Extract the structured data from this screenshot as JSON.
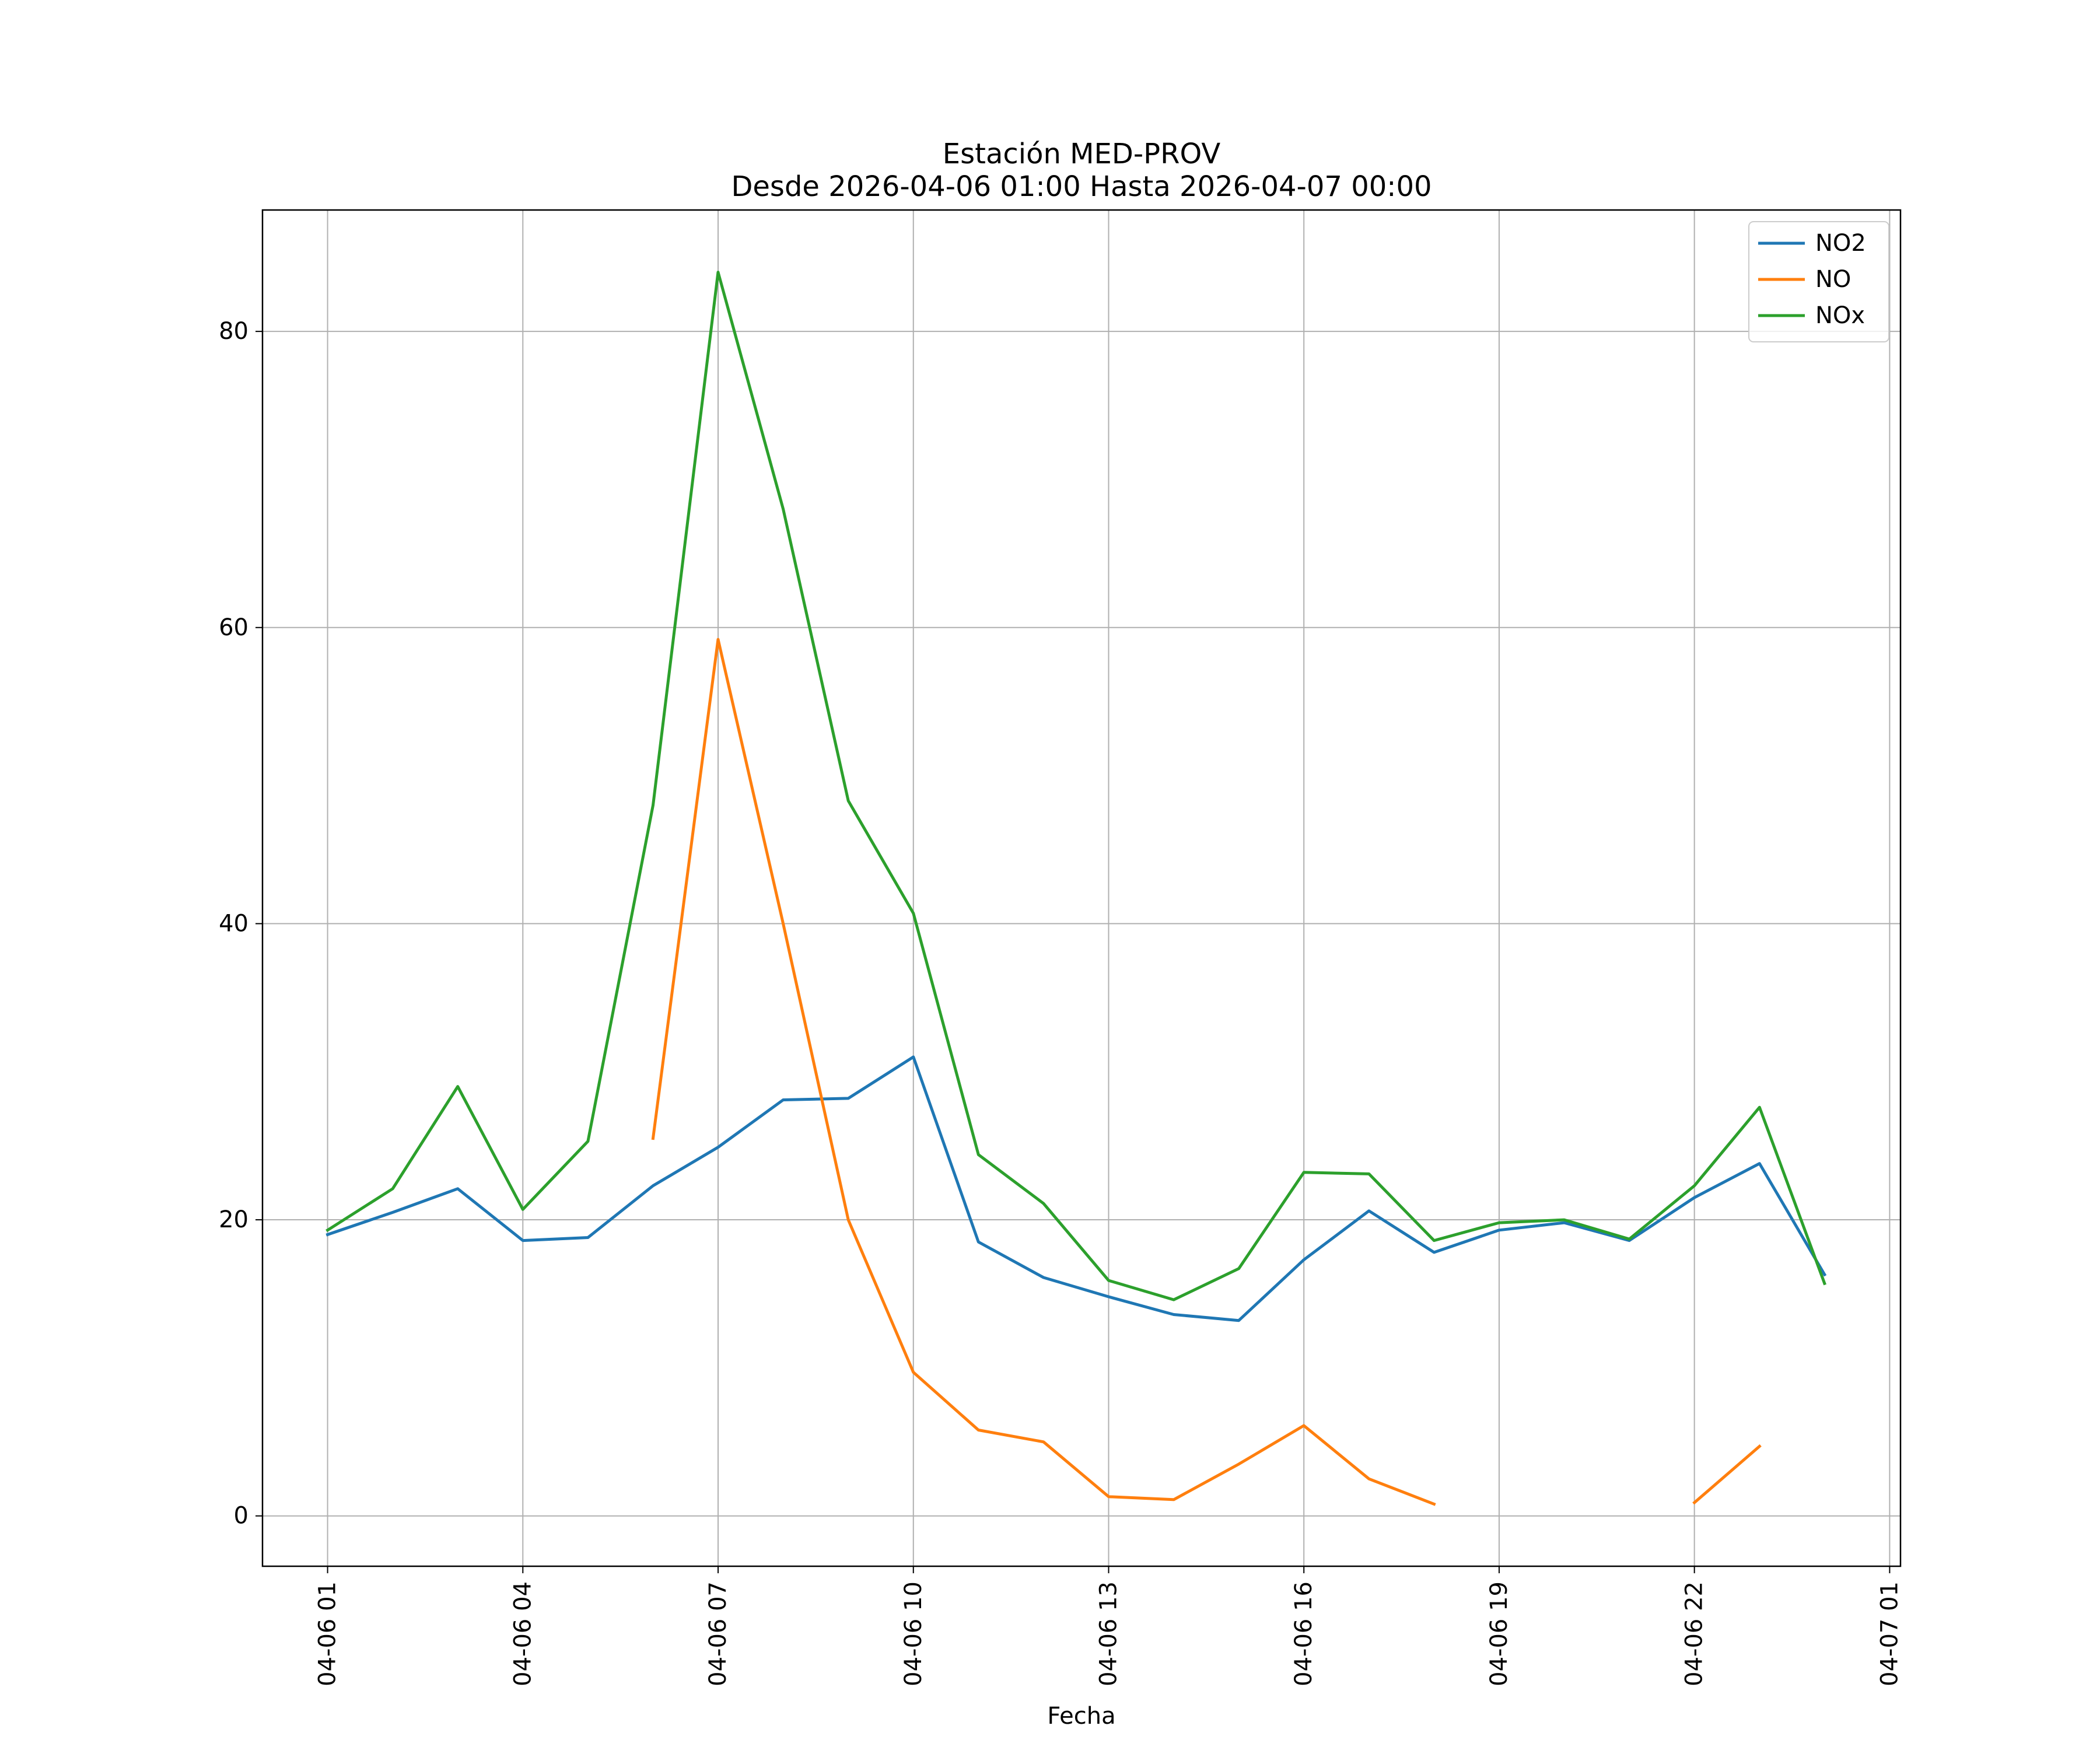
{
  "chart_data": {
    "type": "line",
    "title": "Estación MED-PROV",
    "subtitle": "Desde 2026-04-06 01:00 Hasta 2026-04-07 00:00",
    "xlabel": "Fecha",
    "ylabel": "",
    "x": [
      "04-06 01:00",
      "04-06 02:00",
      "04-06 03:00",
      "04-06 04:00",
      "04-06 05:00",
      "04-06 06:00",
      "04-06 07:00",
      "04-06 08:00",
      "04-06 09:00",
      "04-06 10:00",
      "04-06 11:00",
      "04-06 12:00",
      "04-06 13:00",
      "04-06 14:00",
      "04-06 15:00",
      "04-06 16:00",
      "04-06 17:00",
      "04-06 18:00",
      "04-06 19:00",
      "04-06 20:00",
      "04-06 21:00",
      "04-06 22:00",
      "04-06 23:00",
      "04-07 00:00"
    ],
    "xlim": [
      "04-06 00:00",
      "04-07 01:10"
    ],
    "ylim": [
      -3.4,
      88.2
    ],
    "xticks": [
      "04-06 01",
      "04-06 04",
      "04-06 07",
      "04-06 10",
      "04-06 13",
      "04-06 16",
      "04-06 19",
      "04-06 22",
      "04-07 01"
    ],
    "yticks": [
      "0",
      "20",
      "40",
      "60",
      "80"
    ],
    "grid": true,
    "legend_position": "top-right",
    "series": [
      {
        "name": "NO2",
        "color": "#1f77b4",
        "values": [
          19.0,
          20.5,
          22.1,
          18.6,
          18.8,
          22.3,
          24.9,
          28.1,
          28.2,
          31.0,
          18.5,
          16.1,
          14.8,
          13.6,
          13.2,
          17.3,
          20.6,
          17.8,
          19.3,
          19.8,
          18.6,
          21.5,
          23.8,
          16.3
        ]
      },
      {
        "name": "NO",
        "color": "#ff7f0e",
        "values": [
          null,
          null,
          null,
          null,
          null,
          25.5,
          59.2,
          40.0,
          20.0,
          9.7,
          5.8,
          5.0,
          1.3,
          1.1,
          3.5,
          6.1,
          2.5,
          0.8,
          null,
          null,
          null,
          0.9,
          4.7,
          null
        ]
      },
      {
        "name": "NOx",
        "color": "#2ca02c",
        "values": [
          19.3,
          22.1,
          29.0,
          20.7,
          25.3,
          48.0,
          84.0,
          68.0,
          48.3,
          40.7,
          24.4,
          21.1,
          15.9,
          14.6,
          16.7,
          23.2,
          23.1,
          18.6,
          19.8,
          20.0,
          18.7,
          22.3,
          27.6,
          15.7
        ]
      }
    ]
  }
}
